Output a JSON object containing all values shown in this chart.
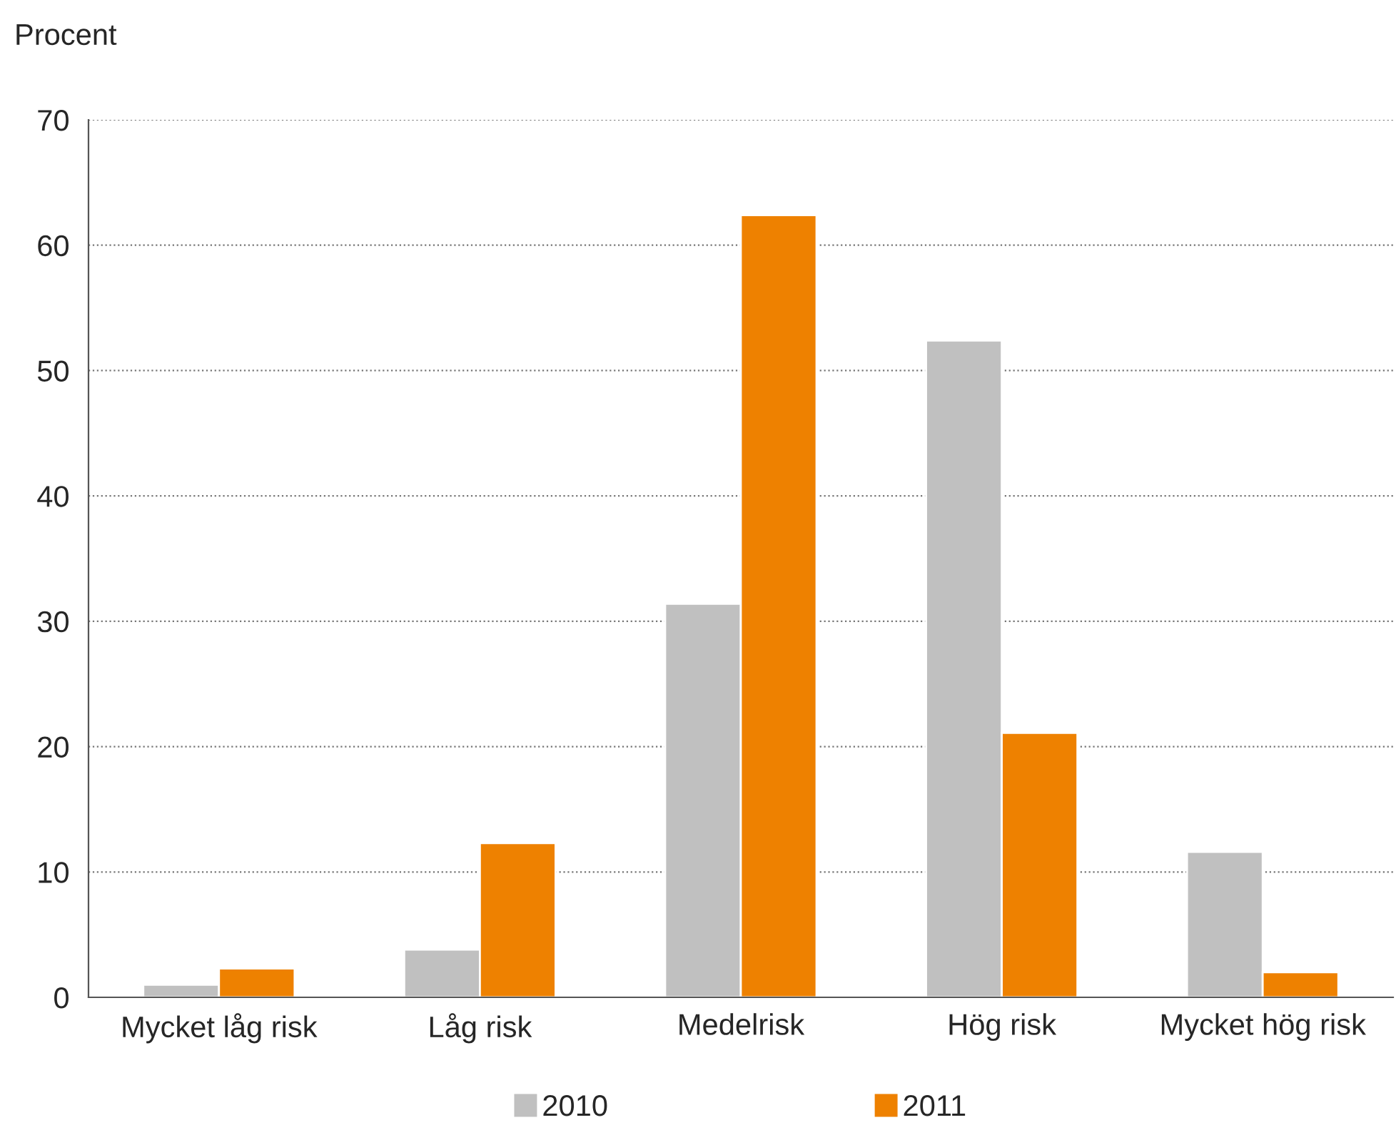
{
  "chart_data": {
    "type": "bar",
    "ylabel": "Procent",
    "categories": [
      "Mycket låg risk",
      "Låg risk",
      "Medelrisk",
      "Hög risk",
      "Mycket hög risk"
    ],
    "series": [
      {
        "name": "2010",
        "color": "#c0c0c0",
        "values": [
          1.0,
          3.8,
          31.4,
          52.4,
          11.6
        ]
      },
      {
        "name": "2011",
        "color": "#ee8100",
        "values": [
          2.3,
          12.3,
          62.4,
          21.1,
          2.0
        ]
      }
    ],
    "ylim": [
      0,
      70
    ],
    "yticks": [
      0,
      10,
      20,
      30,
      40,
      50,
      60,
      70
    ],
    "grid": "y",
    "legend": "bottom"
  }
}
